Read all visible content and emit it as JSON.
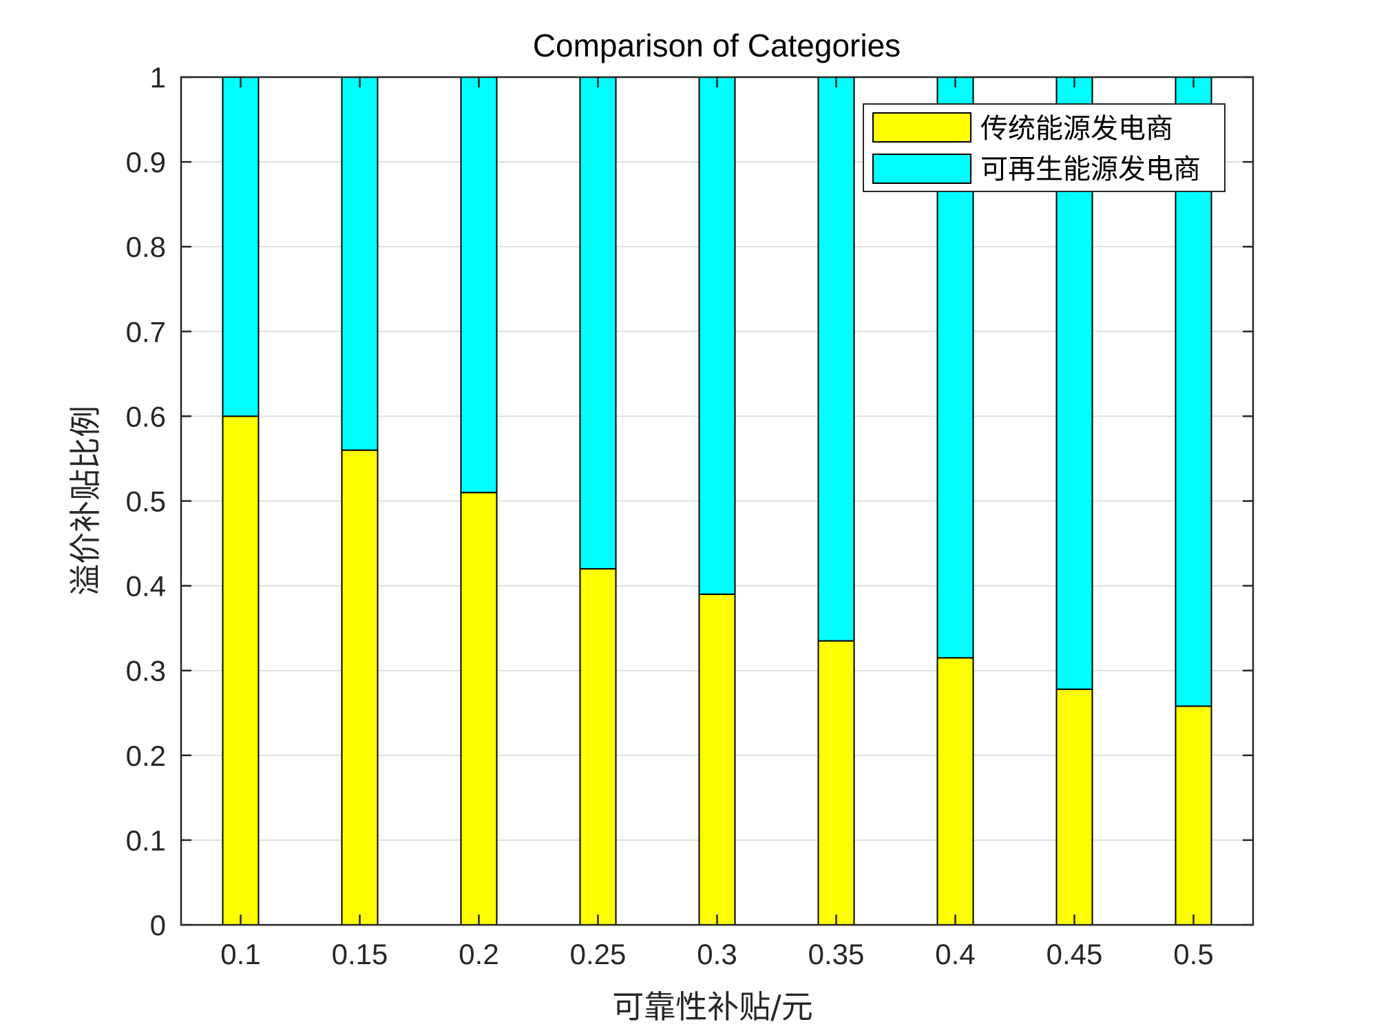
{
  "chart_data": {
    "type": "bar",
    "stacked": true,
    "title": "Comparison of Categories",
    "xlabel": "可靠性补贴/元",
    "ylabel": "溢价补贴比例",
    "categories": [
      "0.1",
      "0.15",
      "0.2",
      "0.25",
      "0.3",
      "0.35",
      "0.4",
      "0.45",
      "0.5"
    ],
    "yticks": [
      "0",
      "0.1",
      "0.2",
      "0.3",
      "0.4",
      "0.5",
      "0.6",
      "0.7",
      "0.8",
      "0.9",
      "1"
    ],
    "ylim": [
      0,
      1
    ],
    "grid": true,
    "legend_position": "top-right",
    "series": [
      {
        "name": "传统能源发电商",
        "color": "#ffff00",
        "values": [
          0.6,
          0.56,
          0.51,
          0.42,
          0.39,
          0.335,
          0.315,
          0.278,
          0.258
        ]
      },
      {
        "name": "可再生能源发电商",
        "color": "#00ffff",
        "values": [
          0.4,
          0.44,
          0.49,
          0.58,
          0.61,
          0.665,
          0.685,
          0.722,
          0.742
        ]
      }
    ]
  }
}
